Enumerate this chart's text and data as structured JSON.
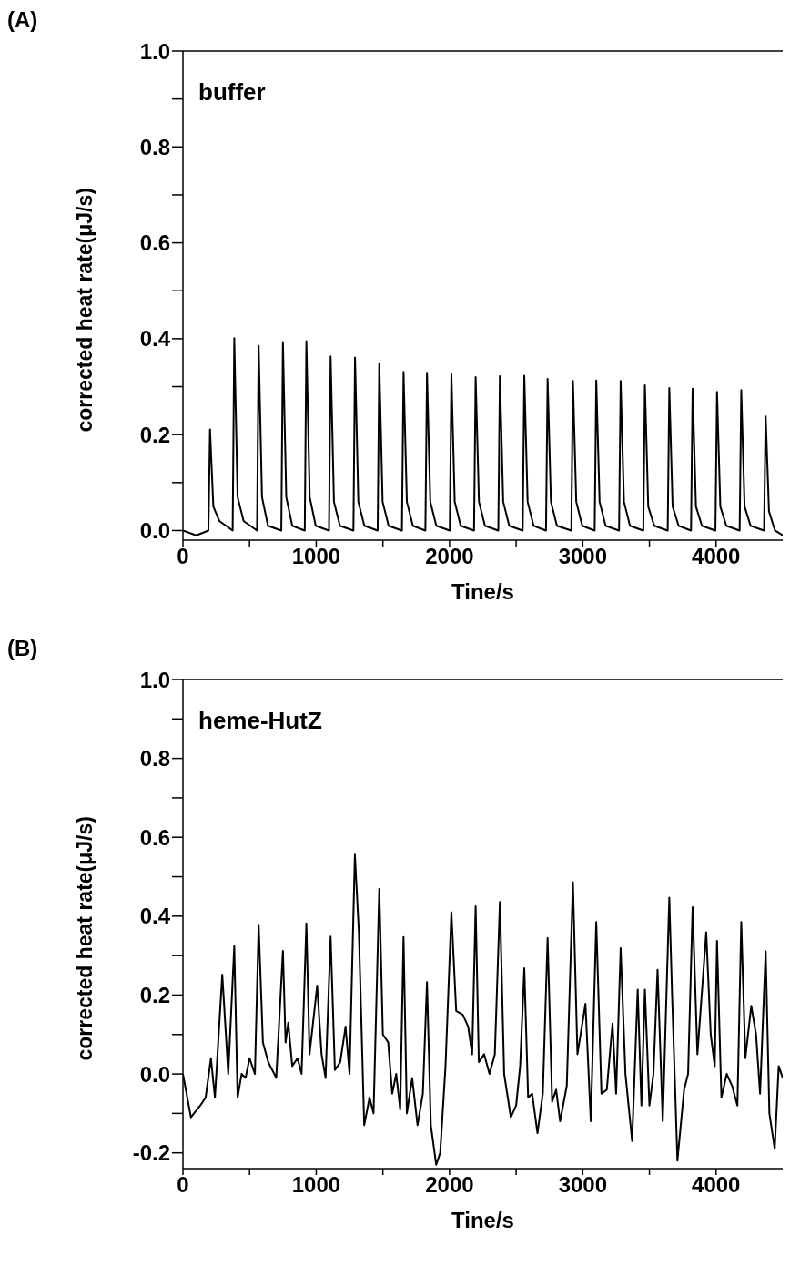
{
  "chart_data": [
    {
      "type": "line",
      "title": "(A)",
      "annotations": [
        "buffer"
      ],
      "xlabel": "Tine/s",
      "ylabel": "corrected heat rate(μJ/s)",
      "x": [
        0,
        100,
        191,
        203,
        228,
        273,
        373,
        385,
        410,
        455,
        556,
        568,
        593,
        638,
        738,
        750,
        775,
        820,
        914,
        926,
        951,
        996,
        1096,
        1108,
        1133,
        1178,
        1279,
        1291,
        1316,
        1361,
        1461,
        1473,
        1498,
        1543,
        1643,
        1655,
        1680,
        1725,
        1819,
        1831,
        1856,
        1901,
        2002,
        2014,
        2039,
        2084,
        2184,
        2196,
        2221,
        2266,
        2366,
        2378,
        2403,
        2448,
        2549,
        2561,
        2586,
        2631,
        2724,
        2736,
        2761,
        2806,
        2914,
        2926,
        2951,
        2996,
        3089,
        3101,
        3126,
        3171,
        3272,
        3284,
        3309,
        3354,
        3454,
        3466,
        3491,
        3536,
        3637,
        3649,
        3674,
        3719,
        3812,
        3824,
        3849,
        3894,
        3995,
        4007,
        4032,
        4077,
        4177,
        4189,
        4214,
        4259,
        4360,
        4372,
        4397,
        4442,
        4500
      ],
      "series": [
        {
          "color": "#000000",
          "values": [
            0.0,
            -0.01,
            0.0,
            0.211,
            0.05,
            0.02,
            0.0,
            0.401,
            0.07,
            0.02,
            0.0,
            0.385,
            0.07,
            0.01,
            0.0,
            0.393,
            0.07,
            0.01,
            0.0,
            0.395,
            0.07,
            0.01,
            0.0,
            0.363,
            0.06,
            0.01,
            0.0,
            0.361,
            0.06,
            0.01,
            0.0,
            0.349,
            0.06,
            0.01,
            0.0,
            0.331,
            0.06,
            0.01,
            0.0,
            0.329,
            0.06,
            0.01,
            0.0,
            0.326,
            0.06,
            0.01,
            0.0,
            0.32,
            0.06,
            0.01,
            0.0,
            0.322,
            0.06,
            0.01,
            0.0,
            0.323,
            0.06,
            0.01,
            0.0,
            0.316,
            0.06,
            0.01,
            0.0,
            0.312,
            0.06,
            0.01,
            0.0,
            0.313,
            0.06,
            0.01,
            0.0,
            0.312,
            0.06,
            0.01,
            0.0,
            0.303,
            0.05,
            0.01,
            0.0,
            0.297,
            0.05,
            0.01,
            0.0,
            0.296,
            0.05,
            0.01,
            0.0,
            0.289,
            0.05,
            0.01,
            0.0,
            0.293,
            0.05,
            0.01,
            0.0,
            0.238,
            0.04,
            0.0,
            -0.01
          ]
        }
      ],
      "xlim": [
        0,
        4500
      ],
      "xticks": [
        0,
        {
          "value": 500,
          "label": null
        },
        1000,
        {
          "value": 1500,
          "label": null
        },
        2000,
        {
          "value": 2500,
          "label": null
        },
        3000,
        {
          "value": 3500,
          "label": null
        },
        4000
      ],
      "ylim": [
        -0.02,
        1.0
      ],
      "yticks": [
        {
          "value": 0,
          "label": "0.0"
        },
        {
          "value": 0.1,
          "label": null
        },
        0.2,
        {
          "value": 0.3,
          "label": null
        },
        0.4,
        {
          "value": 0.5,
          "label": null
        },
        0.6,
        {
          "value": 0.7,
          "label": null
        },
        0.8,
        {
          "value": 0.9,
          "label": null
        },
        {
          "value": 1,
          "label": "1.0"
        }
      ],
      "grid": false,
      "legend": false,
      "marker": "none",
      "line_style": "solid"
    },
    {
      "type": "line",
      "title": "(B)",
      "annotations": [
        "heme-HutZ"
      ],
      "xlabel": "Tine/s",
      "ylabel": "corrected heat rate(μJ/s)",
      "x": [
        0,
        60,
        130,
        170,
        210,
        240,
        295,
        340,
        385,
        410,
        440,
        470,
        500,
        540,
        568,
        600,
        640,
        700,
        750,
        770,
        790,
        820,
        860,
        890,
        926,
        950,
        1007,
        1040,
        1070,
        1108,
        1140,
        1180,
        1220,
        1250,
        1290,
        1320,
        1360,
        1400,
        1430,
        1473,
        1500,
        1540,
        1570,
        1600,
        1630,
        1655,
        1680,
        1720,
        1760,
        1800,
        1831,
        1860,
        1900,
        1930,
        1970,
        2014,
        2050,
        2100,
        2140,
        2170,
        2196,
        2220,
        2260,
        2300,
        2340,
        2378,
        2410,
        2460,
        2500,
        2530,
        2561,
        2590,
        2620,
        2660,
        2700,
        2736,
        2770,
        2800,
        2830,
        2880,
        2926,
        2960,
        3020,
        3060,
        3101,
        3140,
        3180,
        3223,
        3250,
        3284,
        3320,
        3370,
        3412,
        3440,
        3466,
        3500,
        3530,
        3561,
        3600,
        3649,
        3670,
        3710,
        3760,
        3790,
        3824,
        3860,
        3926,
        3960,
        3990,
        4007,
        4040,
        4080,
        4120,
        4160,
        4189,
        4220,
        4264,
        4300,
        4330,
        4372,
        4400,
        4440,
        4470,
        4500
      ],
      "series": [
        {
          "color": "#000000",
          "values": [
            0.0,
            -0.11,
            -0.08,
            -0.06,
            0.04,
            -0.06,
            0.252,
            0.0,
            0.324,
            -0.06,
            0.0,
            -0.01,
            0.04,
            0.0,
            0.378,
            0.08,
            0.03,
            -0.01,
            0.312,
            0.08,
            0.13,
            0.02,
            0.04,
            0.0,
            0.382,
            0.05,
            0.224,
            0.05,
            -0.01,
            0.348,
            0.01,
            0.03,
            0.12,
            0.0,
            0.556,
            0.36,
            -0.13,
            -0.06,
            -0.1,
            0.469,
            0.1,
            0.08,
            -0.05,
            0.0,
            -0.09,
            0.347,
            -0.1,
            -0.01,
            -0.13,
            -0.05,
            0.233,
            -0.13,
            -0.23,
            -0.2,
            0.02,
            0.41,
            0.16,
            0.15,
            0.12,
            0.05,
            0.425,
            0.03,
            0.05,
            0.0,
            0.05,
            0.436,
            0.0,
            -0.11,
            -0.08,
            0.02,
            0.268,
            -0.06,
            -0.05,
            -0.15,
            -0.05,
            0.345,
            -0.07,
            -0.04,
            -0.12,
            -0.03,
            0.486,
            0.05,
            0.178,
            -0.12,
            0.385,
            -0.05,
            -0.04,
            0.128,
            -0.05,
            0.319,
            0.0,
            -0.17,
            0.214,
            -0.08,
            0.214,
            -0.08,
            0.0,
            0.264,
            -0.12,
            0.447,
            0.2,
            -0.22,
            -0.04,
            0.0,
            0.423,
            0.05,
            0.359,
            0.1,
            0.02,
            0.337,
            -0.06,
            0.0,
            -0.03,
            -0.08,
            0.385,
            0.04,
            0.173,
            0.1,
            -0.05,
            0.311,
            -0.1,
            -0.19,
            0.02,
            -0.01
          ]
        }
      ],
      "xlim": [
        0,
        4500
      ],
      "xticks": [
        0,
        {
          "value": 500,
          "label": null
        },
        1000,
        {
          "value": 1500,
          "label": null
        },
        2000,
        {
          "value": 2500,
          "label": null
        },
        3000,
        {
          "value": 3500,
          "label": null
        },
        4000
      ],
      "ylim": [
        -0.24,
        1.0
      ],
      "yticks": [
        -0.2,
        {
          "value": -0.1,
          "label": null
        },
        {
          "value": 0,
          "label": "0.0"
        },
        {
          "value": 0.1,
          "label": null
        },
        0.2,
        {
          "value": 0.3,
          "label": null
        },
        0.4,
        {
          "value": 0.5,
          "label": null
        },
        0.6,
        {
          "value": 0.7,
          "label": null
        },
        0.8,
        {
          "value": 0.9,
          "label": null
        },
        {
          "value": 1,
          "label": "1.0"
        }
      ],
      "grid": false,
      "legend": false,
      "marker": "none",
      "line_style": "solid"
    }
  ]
}
